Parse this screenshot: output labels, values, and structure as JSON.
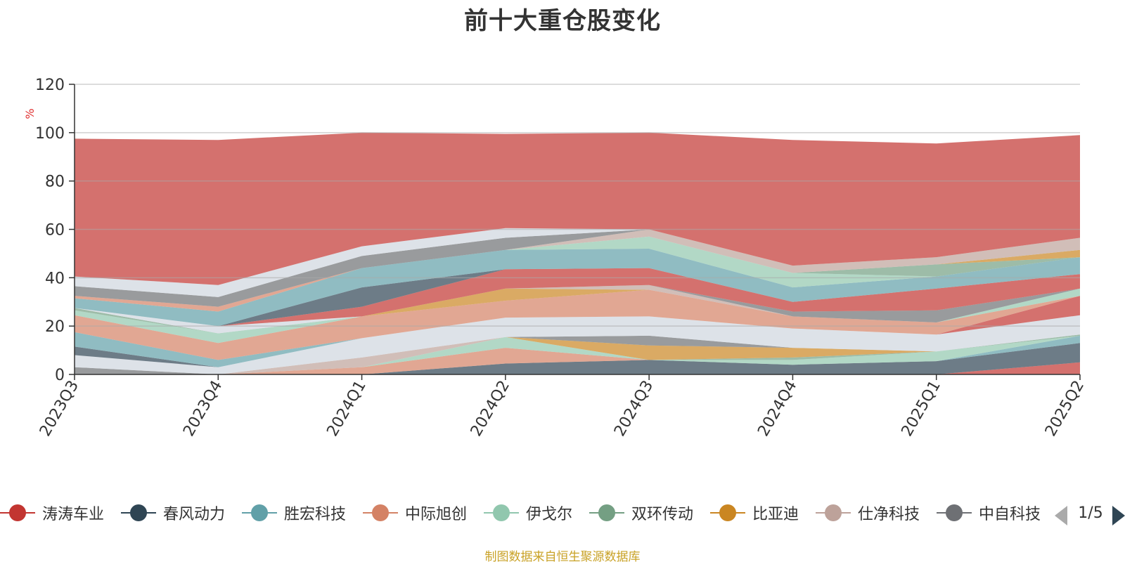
{
  "title": "前十大重仓股变化",
  "source_note": "制图数据来自恒生聚源数据库",
  "pager": {
    "text": "1/5"
  },
  "chart_data": {
    "type": "area",
    "stacked": true,
    "categories": [
      "2023Q3",
      "2023Q4",
      "2024Q1",
      "2024Q2",
      "2024Q3",
      "2024Q4",
      "2025Q1",
      "2025Q2"
    ],
    "ylabel": "%",
    "ylim": [
      0,
      120
    ],
    "yticks": [
      0,
      20,
      40,
      60,
      80,
      100,
      120
    ],
    "grid": true,
    "legend_position": "bottom",
    "series": [
      {
        "name": "",
        "color": "#c23531",
        "values": [
          0,
          0,
          0,
          0,
          0,
          0,
          0,
          5
        ]
      },
      {
        "name": "",
        "color": "#2f4554",
        "values": [
          0,
          0,
          0,
          4.5,
          6,
          4,
          5.5,
          8
        ]
      },
      {
        "name": "",
        "color": "#61a0a8",
        "values": [
          0,
          0,
          0,
          0,
          0,
          0,
          0,
          3
        ]
      },
      {
        "name": "",
        "color": "#d48265",
        "values": [
          0,
          0,
          3,
          6.5,
          0,
          0,
          0,
          0
        ]
      },
      {
        "name": "",
        "color": "#91c7ae",
        "values": [
          0,
          0,
          0,
          4.5,
          0,
          2,
          4,
          0
        ]
      },
      {
        "name": "",
        "color": "#749f83",
        "values": [
          0,
          0,
          0,
          0,
          0,
          1,
          0,
          0.5
        ]
      },
      {
        "name": "",
        "color": "#ca8622",
        "values": [
          0,
          0,
          0,
          0,
          6,
          4,
          0,
          0
        ]
      },
      {
        "name": "",
        "color": "#bda29a",
        "values": [
          0,
          0,
          4,
          0,
          0,
          0,
          0,
          0
        ]
      },
      {
        "name": "",
        "color": "#6e7074",
        "values": [
          3,
          0,
          0,
          0,
          4,
          0,
          0,
          0
        ]
      },
      {
        "name": "",
        "color": "#cfd6de",
        "values": [
          5,
          3,
          8,
          8,
          8,
          8,
          7,
          8
        ]
      },
      {
        "name": "",
        "color": "#c23531",
        "values": [
          0,
          0,
          0,
          0,
          0,
          0,
          0,
          8
        ]
      },
      {
        "name": "",
        "color": "#2f4554",
        "values": [
          3.5,
          0,
          0,
          0,
          0,
          0,
          0,
          0
        ]
      },
      {
        "name": "",
        "color": "#61a0a8",
        "values": [
          6,
          3,
          0,
          0,
          0,
          0,
          0,
          0
        ]
      },
      {
        "name": "",
        "color": "#d48265",
        "values": [
          7,
          7,
          9,
          7,
          11,
          5,
          5,
          0
        ]
      },
      {
        "name": "",
        "color": "#91c7ae",
        "values": [
          2,
          4,
          0,
          0,
          0,
          0,
          0,
          3
        ]
      },
      {
        "name": "",
        "color": "#749f83",
        "values": [
          1,
          0,
          0,
          0,
          0,
          0,
          0,
          0
        ]
      },
      {
        "name": "",
        "color": "#ca8622",
        "values": [
          0,
          0,
          0,
          5,
          0,
          0,
          0,
          0
        ]
      },
      {
        "name": "",
        "color": "#bda29a",
        "values": [
          0,
          0,
          0,
          0,
          2,
          0,
          0,
          0
        ]
      },
      {
        "name": "",
        "color": "#6e7074",
        "values": [
          0,
          0,
          0,
          0,
          0,
          2,
          5,
          0
        ]
      },
      {
        "name": "",
        "color": "#cfd6de",
        "values": [
          0,
          3,
          0,
          0,
          0,
          0,
          0,
          0
        ]
      },
      {
        "name": "",
        "color": "#c23531",
        "values": [
          0,
          0,
          4,
          8,
          7,
          4,
          9,
          6
        ]
      },
      {
        "name": "",
        "color": "#2f4554",
        "values": [
          0,
          0,
          8,
          0,
          0,
          0,
          0,
          0
        ]
      },
      {
        "name": "",
        "color": "#61a0a8",
        "values": [
          4,
          6,
          8,
          8,
          8,
          6,
          5,
          7
        ]
      },
      {
        "name": "",
        "color": "#d48265",
        "values": [
          1,
          2,
          0,
          0,
          0,
          0,
          0,
          0
        ]
      },
      {
        "name": "",
        "color": "#91c7ae",
        "values": [
          0,
          0,
          0,
          0,
          5,
          6,
          0,
          0
        ]
      },
      {
        "name": "",
        "color": "#749f83",
        "values": [
          0,
          0,
          0,
          0,
          0,
          0,
          5,
          0
        ]
      },
      {
        "name": "",
        "color": "#ca8622",
        "values": [
          0,
          0,
          0,
          0,
          0,
          0,
          0,
          3
        ]
      },
      {
        "name": "",
        "color": "#bda29a",
        "values": [
          0,
          0,
          0,
          0,
          3,
          3,
          3,
          5
        ]
      },
      {
        "name": "",
        "color": "#6e7074",
        "values": [
          4,
          4,
          5,
          5,
          0,
          0,
          0,
          0
        ]
      },
      {
        "name": "",
        "color": "#cfd6de",
        "values": [
          4,
          5,
          4,
          4,
          0,
          0,
          0,
          0
        ]
      },
      {
        "name": "",
        "color": "#c23531",
        "values": [
          57,
          60,
          47,
          39,
          40,
          52,
          47,
          42.5
        ]
      }
    ],
    "legend": [
      {
        "name": "涛涛车业",
        "color": "#c23531"
      },
      {
        "name": "春风动力",
        "color": "#2f4554"
      },
      {
        "name": "胜宏科技",
        "color": "#61a0a8"
      },
      {
        "name": "中际旭创",
        "color": "#d48265"
      },
      {
        "name": "伊戈尔",
        "color": "#91c7ae"
      },
      {
        "name": "双环传动",
        "color": "#749f83"
      },
      {
        "name": "比亚迪",
        "color": "#ca8622"
      },
      {
        "name": "仕净科技",
        "color": "#bda29a"
      },
      {
        "name": "中自科技",
        "color": "#6e7074"
      }
    ]
  }
}
